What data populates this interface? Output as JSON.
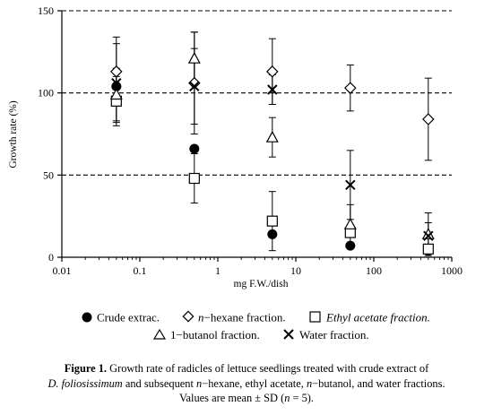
{
  "chart_data": {
    "type": "scatter",
    "xlabel": "mg F.W./dish",
    "ylabel": "Growth rate (%)",
    "x_scale": "log",
    "xlim": [
      0.01,
      1000
    ],
    "ylim": [
      0,
      150
    ],
    "x_ticks": [
      "0.01",
      "0.1",
      "1",
      "10",
      "100",
      "1000"
    ],
    "y_ticks": [
      "0",
      "50",
      "100",
      "150"
    ],
    "reference_lines": [
      50,
      100,
      150
    ],
    "series": [
      {
        "key": "crude",
        "legend_label": "Crude extrac.",
        "marker": "filled-circle",
        "x": [
          0.05,
          0.5,
          5,
          50,
          500
        ],
        "y": [
          104,
          66,
          14,
          7,
          4
        ],
        "err": [
          0,
          0,
          0,
          0,
          0
        ]
      },
      {
        "key": "hexane",
        "legend_prefix": "n",
        "legend_label": "−hexane fraction.",
        "marker": "diamond",
        "x": [
          0.05,
          0.5,
          5,
          50,
          500
        ],
        "y": [
          113,
          106,
          113,
          103,
          84
        ],
        "err": [
          21,
          31,
          20,
          14,
          25
        ]
      },
      {
        "key": "ethyl",
        "legend_label": "Ethyl acetate fraction.",
        "marker": "square",
        "x": [
          0.05,
          0.5,
          5,
          50,
          500
        ],
        "y": [
          95,
          48,
          22,
          15,
          5
        ],
        "err": [
          15,
          15,
          18,
          0,
          0
        ]
      },
      {
        "key": "butanol",
        "legend_label": "1−butanol fraction.",
        "marker": "triangle",
        "x": [
          0.05,
          0.5,
          5,
          50,
          500
        ],
        "y": [
          99,
          121,
          73,
          20,
          14
        ],
        "err": [
          16,
          16,
          12,
          12,
          13
        ]
      },
      {
        "key": "water",
        "legend_label": "Water fraction.",
        "marker": "x-cross",
        "x": [
          0.05,
          0.5,
          5,
          50,
          500
        ],
        "y": [
          106,
          104,
          102,
          44,
          13
        ],
        "err": [
          24,
          23,
          9,
          21,
          8
        ]
      }
    ]
  },
  "caption": {
    "bold": "Figure 1.",
    "line1_rest": " Growth rate of radicles of lettuce seedlings treated with crude extract of",
    "line2_species": "D. foliosissimum",
    "line2_a": " and subsequent ",
    "line2_n1": "n",
    "line2_b": "−hexane, ethyl acetate, ",
    "line2_n2": "n",
    "line2_c": "−butanol, and water fractions.",
    "line3_a": "Values are mean ± SD (",
    "line3_n": "n",
    "line3_b": " = 5)."
  }
}
